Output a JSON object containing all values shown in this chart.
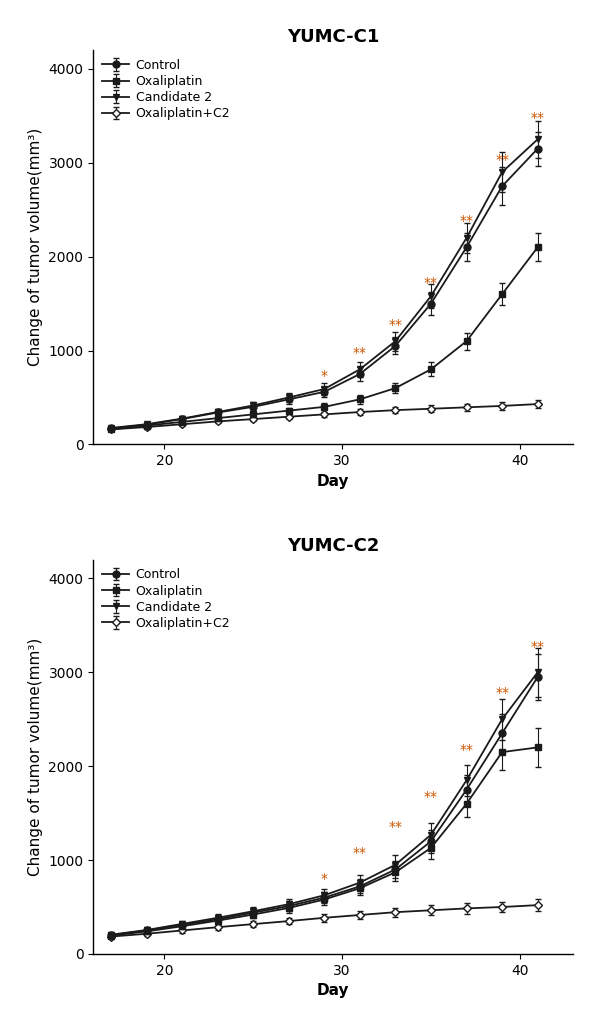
{
  "title1": "YUMC-C1",
  "title2": "YUMC-C2",
  "xlabel": "Day",
  "ylabel": "Change of tumor volume(mm³)",
  "legend_labels": [
    "Control",
    "Oxaliplatin",
    "Candidate 2",
    "Oxaliplatin+C2"
  ],
  "xlim": [
    16,
    43
  ],
  "ylim": [
    0,
    4200
  ],
  "yticks": [
    0,
    1000,
    2000,
    3000,
    4000
  ],
  "xticks": [
    20,
    30,
    40
  ],
  "c1": {
    "days": [
      17,
      19,
      21,
      23,
      25,
      27,
      29,
      31,
      33,
      35,
      37,
      39,
      41
    ],
    "control": [
      170,
      210,
      270,
      340,
      400,
      480,
      560,
      750,
      1050,
      1500,
      2100,
      2750,
      3150
    ],
    "control_e": [
      20,
      22,
      28,
      32,
      38,
      45,
      55,
      70,
      90,
      120,
      150,
      200,
      180
    ],
    "oxali": [
      160,
      200,
      240,
      280,
      320,
      360,
      400,
      480,
      600,
      800,
      1100,
      1600,
      2100
    ],
    "oxali_e": [
      18,
      20,
      22,
      26,
      30,
      32,
      38,
      45,
      55,
      75,
      90,
      120,
      150
    ],
    "cand2": [
      175,
      215,
      275,
      345,
      415,
      500,
      590,
      800,
      1100,
      1580,
      2200,
      2900,
      3250
    ],
    "cand2_e": [
      22,
      24,
      30,
      35,
      42,
      50,
      60,
      80,
      100,
      130,
      160,
      210,
      200
    ],
    "combo": [
      160,
      185,
      215,
      245,
      270,
      295,
      320,
      345,
      365,
      380,
      395,
      410,
      430
    ],
    "combo_e": [
      15,
      18,
      20,
      22,
      25,
      28,
      30,
      32,
      35,
      38,
      40,
      42,
      45
    ],
    "sig_days": [
      29,
      31,
      33,
      35,
      37,
      39,
      41
    ],
    "sig_labels": [
      "*",
      "**",
      "**",
      "**",
      "**",
      "**",
      "**"
    ],
    "sig_y": [
      650,
      900,
      1200,
      1650,
      2300,
      2950,
      3400
    ]
  },
  "c2": {
    "days": [
      17,
      19,
      21,
      23,
      25,
      27,
      29,
      31,
      33,
      35,
      37,
      39,
      41
    ],
    "control": [
      200,
      250,
      310,
      370,
      440,
      510,
      600,
      720,
      900,
      1200,
      1750,
      2350,
      2950
    ],
    "control_e": [
      22,
      26,
      32,
      38,
      44,
      52,
      62,
      75,
      95,
      125,
      160,
      210,
      250
    ],
    "oxali": [
      195,
      240,
      295,
      355,
      420,
      490,
      580,
      700,
      870,
      1130,
      1600,
      2150,
      2200
    ],
    "oxali_e": [
      20,
      24,
      30,
      35,
      42,
      50,
      58,
      70,
      88,
      115,
      145,
      190,
      210
    ],
    "cand2": [
      205,
      255,
      320,
      385,
      455,
      530,
      625,
      760,
      950,
      1270,
      1850,
      2500,
      3000
    ],
    "cand2_e": [
      24,
      28,
      34,
      40,
      46,
      55,
      65,
      80,
      100,
      130,
      165,
      220,
      260
    ],
    "combo": [
      185,
      215,
      250,
      285,
      318,
      350,
      385,
      415,
      445,
      465,
      485,
      500,
      520
    ],
    "combo_e": [
      18,
      20,
      24,
      28,
      32,
      36,
      40,
      44,
      48,
      52,
      56,
      58,
      62
    ],
    "sig_days": [
      29,
      31,
      33,
      35,
      37,
      39,
      41
    ],
    "sig_labels": [
      "*",
      "**",
      "**",
      "**",
      "**",
      "**",
      "**"
    ],
    "sig_y": [
      720,
      1000,
      1280,
      1600,
      2100,
      2700,
      3200
    ]
  },
  "line_color": "#1a1a1a",
  "sig_color": "#cc5500",
  "marker_size": 5,
  "line_width": 1.3,
  "font_size_title": 13,
  "font_size_axis": 11,
  "font_size_tick": 10,
  "font_size_legend": 9,
  "font_size_sig": 10
}
